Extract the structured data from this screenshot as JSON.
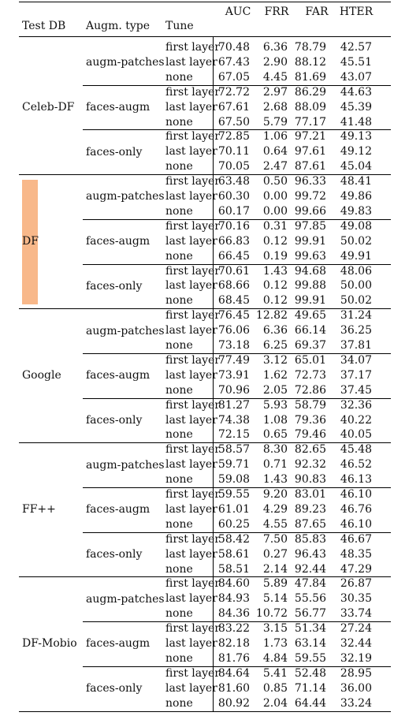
{
  "colors": {
    "highlight": "#f8b88a",
    "rule": "#000000"
  },
  "header": {
    "test_db": "Test DB",
    "augm_type": "Augm. type",
    "tune": "Tune",
    "metrics": [
      "AUC",
      "FRR",
      "FAR",
      "HTER"
    ]
  },
  "highlighted_db": "DF",
  "groups": [
    {
      "db": "Celeb-DF",
      "subs": [
        {
          "augm": "augm-patches",
          "rows": [
            {
              "tune": "first layer",
              "v": [
                "70.48",
                "6.36",
                "78.79",
                "42.57"
              ]
            },
            {
              "tune": "last layer",
              "v": [
                "67.43",
                "2.90",
                "88.12",
                "45.51"
              ]
            },
            {
              "tune": "none",
              "v": [
                "67.05",
                "4.45",
                "81.69",
                "43.07"
              ]
            }
          ]
        },
        {
          "augm": "faces-augm",
          "rows": [
            {
              "tune": "first layer",
              "v": [
                "72.72",
                "2.97",
                "86.29",
                "44.63"
              ]
            },
            {
              "tune": "last layer",
              "v": [
                "67.61",
                "2.68",
                "88.09",
                "45.39"
              ]
            },
            {
              "tune": "none",
              "v": [
                "67.50",
                "5.79",
                "77.17",
                "41.48"
              ]
            }
          ]
        },
        {
          "augm": "faces-only",
          "rows": [
            {
              "tune": "first layer",
              "v": [
                "72.85",
                "1.06",
                "97.21",
                "49.13"
              ]
            },
            {
              "tune": "last layer",
              "v": [
                "70.11",
                "0.64",
                "97.61",
                "49.12"
              ]
            },
            {
              "tune": "none",
              "v": [
                "70.05",
                "2.47",
                "87.61",
                "45.04"
              ]
            }
          ]
        }
      ]
    },
    {
      "db": "DF",
      "subs": [
        {
          "augm": "augm-patches",
          "rows": [
            {
              "tune": "first layer",
              "v": [
                "63.48",
                "0.50",
                "96.33",
                "48.41"
              ]
            },
            {
              "tune": "last layer",
              "v": [
                "60.30",
                "0.00",
                "99.72",
                "49.86"
              ]
            },
            {
              "tune": "none",
              "v": [
                "60.17",
                "0.00",
                "99.66",
                "49.83"
              ]
            }
          ]
        },
        {
          "augm": "faces-augm",
          "rows": [
            {
              "tune": "first layer",
              "v": [
                "70.16",
                "0.31",
                "97.85",
                "49.08"
              ]
            },
            {
              "tune": "last layer",
              "v": [
                "66.83",
                "0.12",
                "99.91",
                "50.02"
              ]
            },
            {
              "tune": "none",
              "v": [
                "66.45",
                "0.19",
                "99.63",
                "49.91"
              ]
            }
          ]
        },
        {
          "augm": "faces-only",
          "rows": [
            {
              "tune": "first layer",
              "v": [
                "70.61",
                "1.43",
                "94.68",
                "48.06"
              ]
            },
            {
              "tune": "last layer",
              "v": [
                "68.66",
                "0.12",
                "99.88",
                "50.00"
              ]
            },
            {
              "tune": "none",
              "v": [
                "68.45",
                "0.12",
                "99.91",
                "50.02"
              ]
            }
          ]
        }
      ]
    },
    {
      "db": "Google",
      "subs": [
        {
          "augm": "augm-patches",
          "rows": [
            {
              "tune": "first layer",
              "v": [
                "76.45",
                "12.82",
                "49.65",
                "31.24"
              ]
            },
            {
              "tune": "last layer",
              "v": [
                "76.06",
                "6.36",
                "66.14",
                "36.25"
              ]
            },
            {
              "tune": "none",
              "v": [
                "73.18",
                "6.25",
                "69.37",
                "37.81"
              ]
            }
          ]
        },
        {
          "augm": "faces-augm",
          "rows": [
            {
              "tune": "first layer",
              "v": [
                "77.49",
                "3.12",
                "65.01",
                "34.07"
              ]
            },
            {
              "tune": "last layer",
              "v": [
                "73.91",
                "1.62",
                "72.73",
                "37.17"
              ]
            },
            {
              "tune": "none",
              "v": [
                "70.96",
                "2.05",
                "72.86",
                "37.45"
              ]
            }
          ]
        },
        {
          "augm": "faces-only",
          "rows": [
            {
              "tune": "first layer",
              "v": [
                "81.27",
                "5.93",
                "58.79",
                "32.36"
              ]
            },
            {
              "tune": "last layer",
              "v": [
                "74.38",
                "1.08",
                "79.36",
                "40.22"
              ]
            },
            {
              "tune": "none",
              "v": [
                "72.15",
                "0.65",
                "79.46",
                "40.05"
              ]
            }
          ]
        }
      ]
    },
    {
      "db": "FF++",
      "subs": [
        {
          "augm": "augm-patches",
          "rows": [
            {
              "tune": "first layer",
              "v": [
                "58.57",
                "8.30",
                "82.65",
                "45.48"
              ]
            },
            {
              "tune": "last layer",
              "v": [
                "59.71",
                "0.71",
                "92.32",
                "46.52"
              ]
            },
            {
              "tune": "none",
              "v": [
                "59.08",
                "1.43",
                "90.83",
                "46.13"
              ]
            }
          ]
        },
        {
          "augm": "faces-augm",
          "rows": [
            {
              "tune": "first layer",
              "v": [
                "59.55",
                "9.20",
                "83.01",
                "46.10"
              ]
            },
            {
              "tune": "last layer",
              "v": [
                "61.01",
                "4.29",
                "89.23",
                "46.76"
              ]
            },
            {
              "tune": "none",
              "v": [
                "60.25",
                "4.55",
                "87.65",
                "46.10"
              ]
            }
          ]
        },
        {
          "augm": "faces-only",
          "rows": [
            {
              "tune": "first layer",
              "v": [
                "58.42",
                "7.50",
                "85.83",
                "46.67"
              ]
            },
            {
              "tune": "last layer",
              "v": [
                "58.61",
                "0.27",
                "96.43",
                "48.35"
              ]
            },
            {
              "tune": "none",
              "v": [
                "58.51",
                "2.14",
                "92.44",
                "47.29"
              ]
            }
          ]
        }
      ]
    },
    {
      "db": "DF-Mobio",
      "subs": [
        {
          "augm": "augm-patches",
          "rows": [
            {
              "tune": "first layer",
              "v": [
                "84.60",
                "5.89",
                "47.84",
                "26.87"
              ]
            },
            {
              "tune": "last layer",
              "v": [
                "84.93",
                "5.14",
                "55.56",
                "30.35"
              ]
            },
            {
              "tune": "none",
              "v": [
                "84.36",
                "10.72",
                "56.77",
                "33.74"
              ]
            }
          ]
        },
        {
          "augm": "faces-augm",
          "rows": [
            {
              "tune": "first layer",
              "v": [
                "83.22",
                "3.15",
                "51.34",
                "27.24"
              ]
            },
            {
              "tune": "last layer",
              "v": [
                "82.18",
                "1.73",
                "63.14",
                "32.44"
              ]
            },
            {
              "tune": "none",
              "v": [
                "81.76",
                "4.84",
                "59.55",
                "32.19"
              ]
            }
          ]
        },
        {
          "augm": "faces-only",
          "rows": [
            {
              "tune": "first layer",
              "v": [
                "84.64",
                "5.41",
                "52.48",
                "28.95"
              ]
            },
            {
              "tune": "last layer",
              "v": [
                "81.60",
                "0.85",
                "71.14",
                "36.00"
              ]
            },
            {
              "tune": "none",
              "v": [
                "80.92",
                "2.04",
                "64.44",
                "33.24"
              ]
            }
          ]
        }
      ]
    }
  ]
}
